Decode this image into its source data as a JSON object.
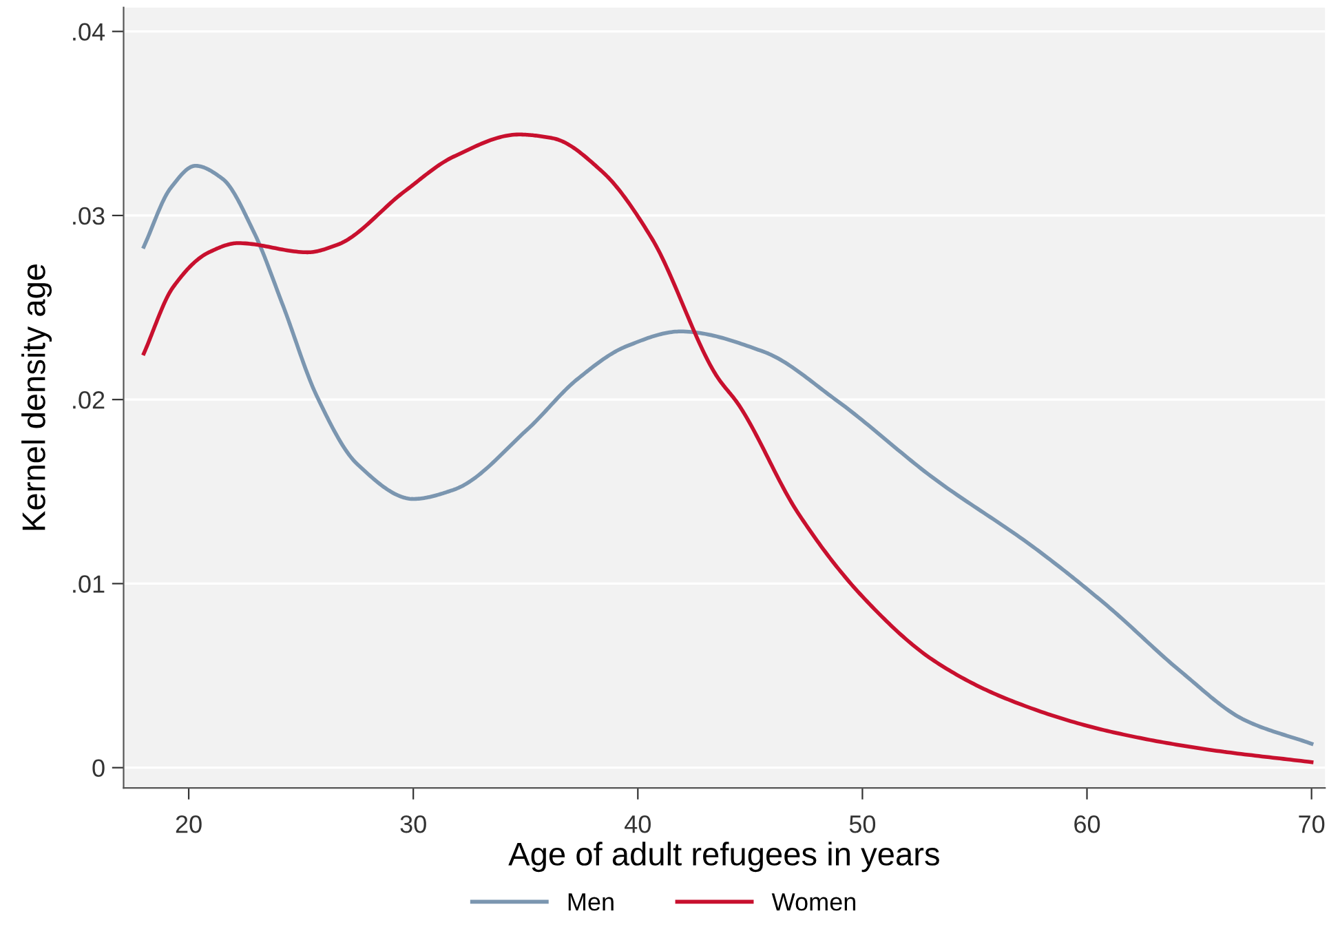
{
  "chart_data": {
    "type": "line",
    "xlabel": "Age of adult refugees in years",
    "ylabel": "Kernel density age",
    "xlim": [
      17.1,
      70.6
    ],
    "xticks": [
      20,
      30,
      40,
      50,
      60,
      70
    ],
    "ylim": [
      -0.0011,
      0.0413
    ],
    "yticks": [
      {
        "value": 0,
        "label": "0"
      },
      {
        "value": 0.01,
        "label": ".01"
      },
      {
        "value": 0.02,
        "label": ".02"
      },
      {
        "value": 0.03,
        "label": ".03"
      },
      {
        "value": 0.04,
        "label": ".04"
      }
    ],
    "grid": "y",
    "legend": "bottom",
    "line_style": "solid",
    "marker": "none",
    "series": [
      {
        "name": "Men",
        "color": "#7b96b0",
        "x": [
          18.0,
          19.2,
          20.3,
          21.5,
          22.9,
          24.2,
          25.7,
          27.5,
          30.0,
          31.8,
          35.1,
          37.3,
          39.5,
          41.9,
          45.6,
          48.8,
          53.2,
          57.6,
          60.9,
          64.2,
          67.0,
          70.0
        ],
        "values": [
          0.0283,
          0.0315,
          0.0327,
          0.032,
          0.0291,
          0.0251,
          0.0202,
          0.0165,
          0.0146,
          0.0151,
          0.0184,
          0.0211,
          0.0229,
          0.0237,
          0.0226,
          0.02,
          0.0157,
          0.012,
          0.0088,
          0.0052,
          0.0026,
          0.0013
        ]
      },
      {
        "name": "Women",
        "color": "#c8102e",
        "x": [
          18.0,
          19.3,
          20.9,
          22.2,
          25.3,
          26.6,
          29.6,
          31.8,
          34.7,
          36.2,
          38.4,
          40.6,
          43.5,
          44.5,
          47.1,
          50.0,
          53.2,
          56.5,
          60.9,
          65.3,
          70.0
        ],
        "values": [
          0.0225,
          0.0261,
          0.028,
          0.0285,
          0.028,
          0.0284,
          0.0313,
          0.0332,
          0.0344,
          0.0342,
          0.0324,
          0.0288,
          0.0213,
          0.0197,
          0.0139,
          0.0093,
          0.0058,
          0.0037,
          0.002,
          0.001,
          0.0003
        ]
      }
    ]
  }
}
